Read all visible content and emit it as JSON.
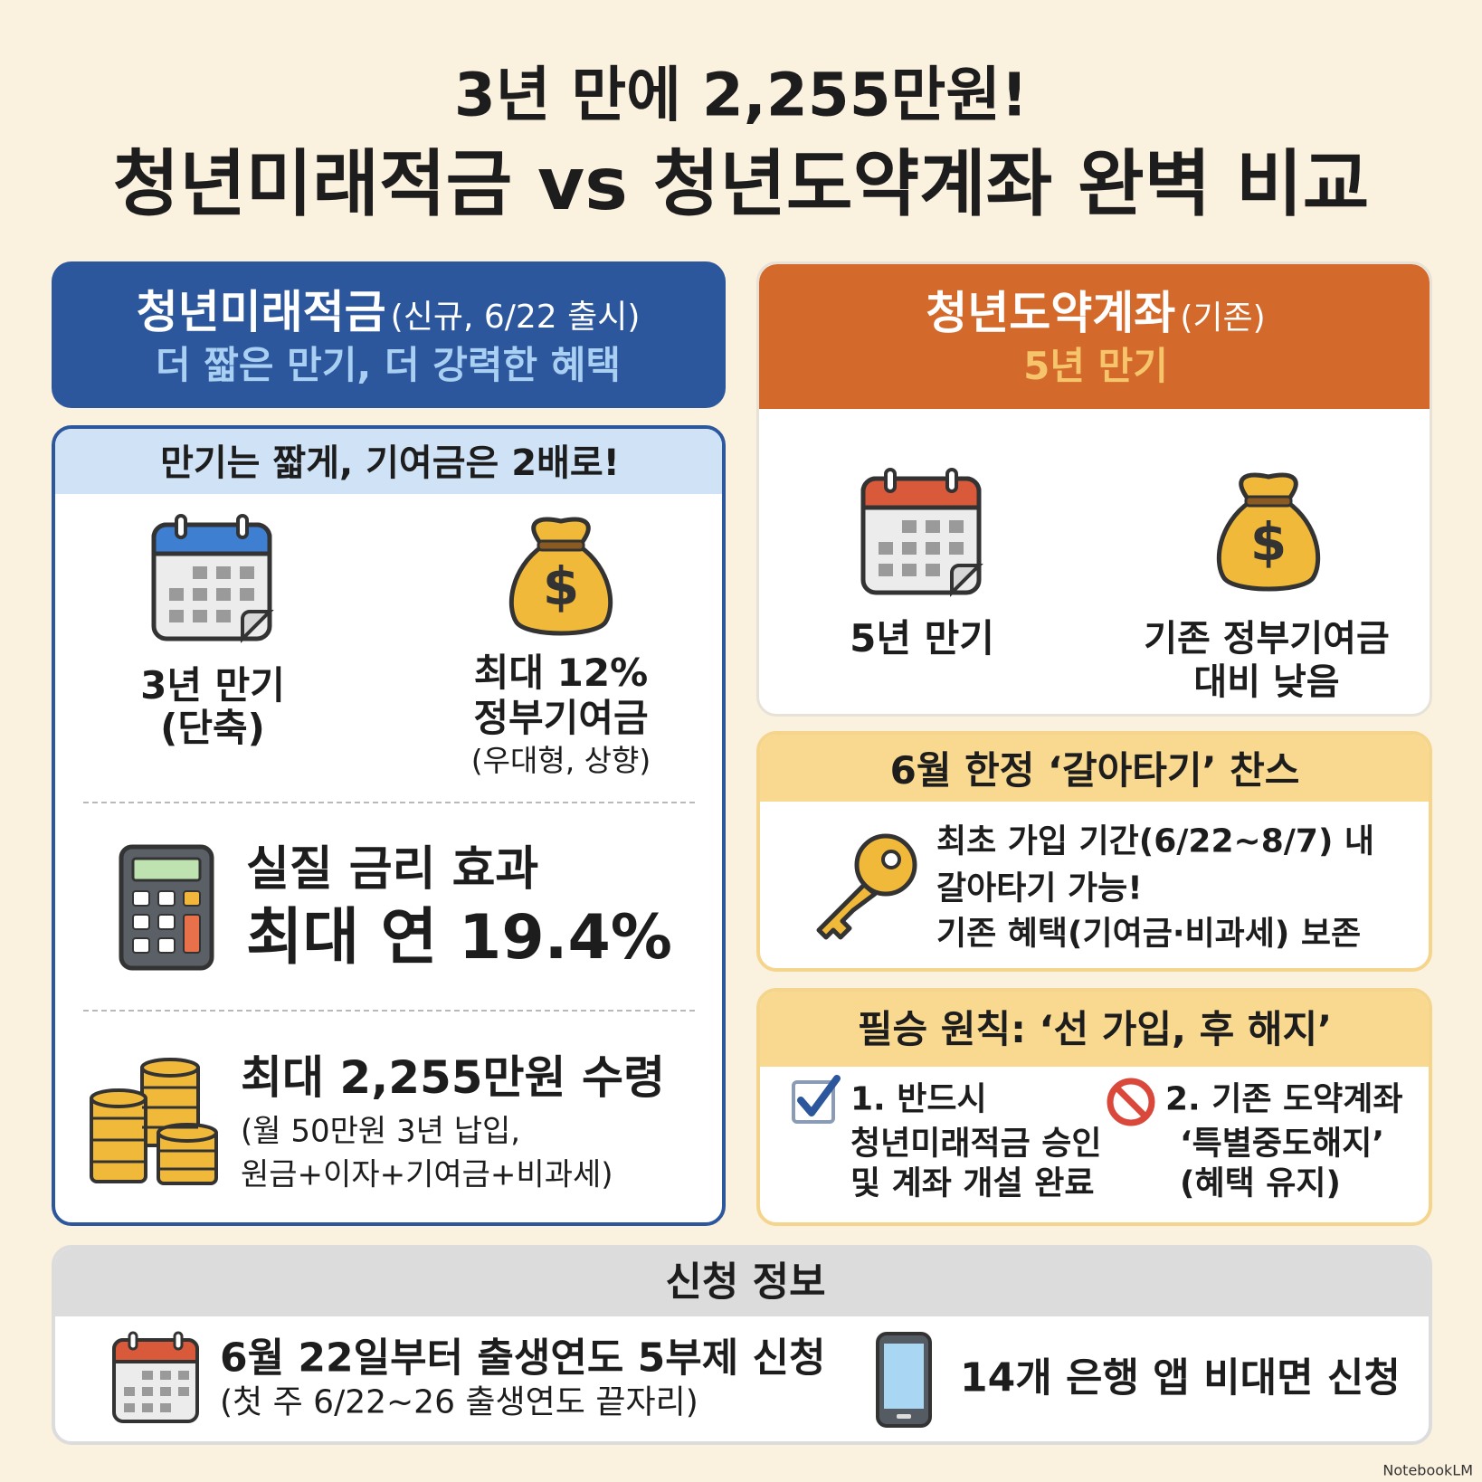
{
  "title": {
    "line1": "3년 만에 2,255만원!",
    "line2": "청년미래적금 vs 청년도약계좌 완벽 비교"
  },
  "left": {
    "header": {
      "name": "청년미래적금",
      "note": "(신규, 6/22 출시)",
      "subtitle": "더 짧은 만기, 더 강력한 혜택"
    },
    "panel_title": "만기는 짧게, 기여금은 2배로!",
    "features": [
      {
        "lines": [
          "3년 만기",
          "(단축)"
        ]
      },
      {
        "lines": [
          "최대 12%",
          "정부기여금",
          "(우대형, 상향)"
        ]
      }
    ],
    "rate": {
      "line1": "실질 금리 효과",
      "line2": "최대 연 19.4%"
    },
    "payout": {
      "title": "최대 2,255만원 수령",
      "lines": [
        "(월 50만원 3년 납입,",
        "원금+이자+기여금+비과세)"
      ]
    }
  },
  "right": {
    "header": {
      "name": "청년도약계좌",
      "note": "(기존)",
      "subtitle": "5년 만기"
    },
    "features": [
      {
        "lines": [
          "5년 만기"
        ]
      },
      {
        "lines": [
          "기존 정부기여금",
          "대비 낮음"
        ]
      }
    ],
    "switch": {
      "title": "6월 한정 ‘갈아타기’ 찬스",
      "lines": [
        "최초 가입 기간(6/22~8/7) 내",
        "갈아타기 가능!",
        "기존 혜택(기여금·비과세) 보존"
      ]
    },
    "rule": {
      "title": "필승 원칙: ‘선 가입, 후 해지’",
      "steps": [
        {
          "lines": [
            "1. 반드시",
            "청년미래적금 승인",
            "및 계좌 개설 완료"
          ]
        },
        {
          "lines": [
            "2. 기존 도약계좌",
            "‘특별중도해지’",
            "(혜택 유지)"
          ]
        }
      ]
    }
  },
  "apply": {
    "title": "신청 정보",
    "schedule": {
      "line1": "6월 22일부터 출생연도 5부제 신청",
      "line2": "(첫 주 6/22~26 출생연도 끝자리)"
    },
    "channel": "14개 은행 앱 비대면 신청"
  },
  "watermark": "NotebookLM"
}
